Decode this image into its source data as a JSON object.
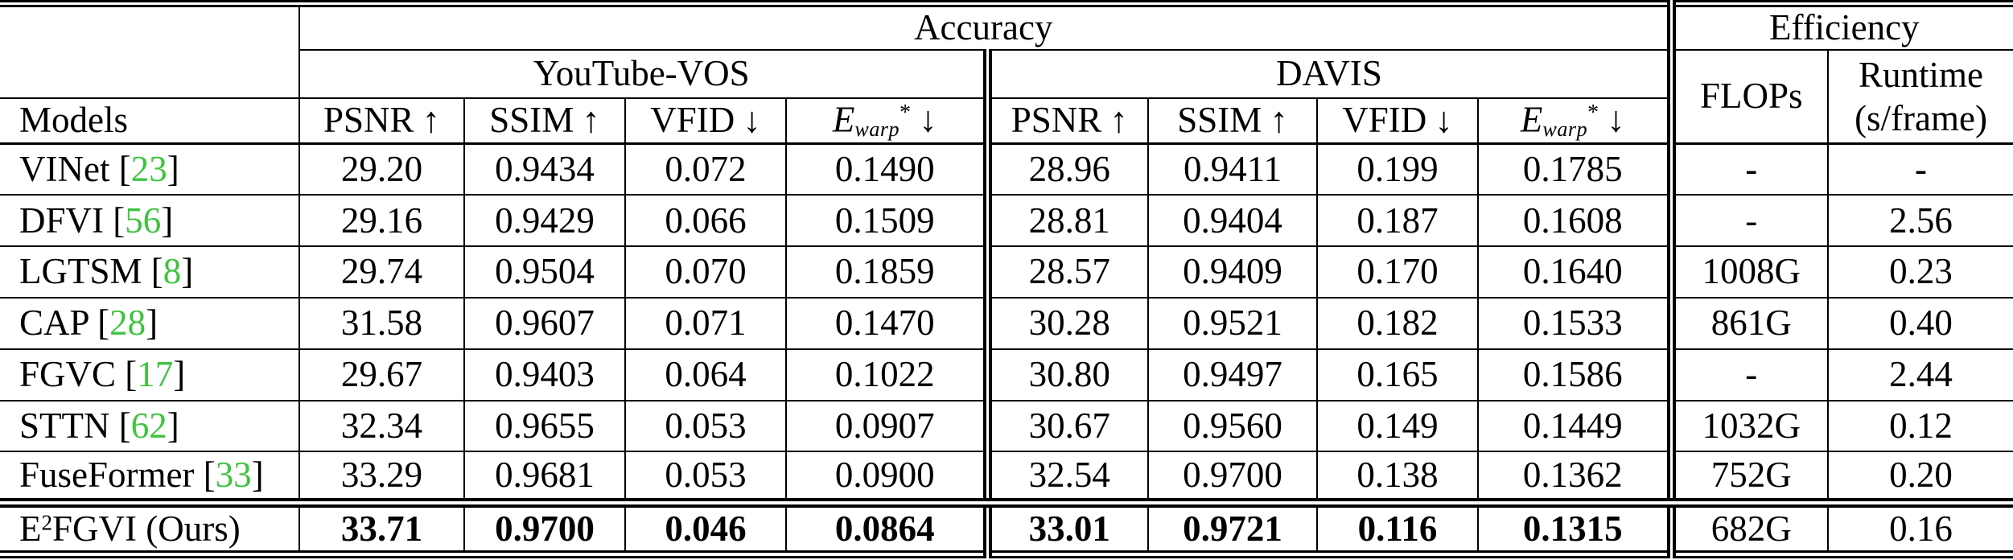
{
  "header": {
    "accuracy": "Accuracy",
    "efficiency": "Efficiency",
    "youtube": "YouTube-VOS",
    "davis": "DAVIS",
    "models": "Models",
    "flops": "FLOPs",
    "runtime_line1": "Runtime",
    "runtime_line2": "(s/frame)",
    "metrics": [
      {
        "label": "PSNR",
        "arrow": "↑"
      },
      {
        "label": "SSIM",
        "arrow": "↑"
      },
      {
        "label": "VFID",
        "arrow": "↓"
      },
      {
        "label": "E",
        "sub": "warp",
        "sup": "*",
        "arrow": "↓"
      }
    ]
  },
  "colors": {
    "citation_green": "#3ec43e"
  },
  "rows": [
    {
      "name_pre": "VINet",
      "name_sup": "",
      "name_post": "",
      "cite": "23",
      "yt": [
        "29.20",
        "0.9434",
        "0.072",
        "0.1490"
      ],
      "davis": [
        "28.96",
        "0.9411",
        "0.199",
        "0.1785"
      ],
      "flops": "-",
      "runtime": "-",
      "bold_accuracy": false,
      "separator_after": false
    },
    {
      "name_pre": "DFVI",
      "name_sup": "",
      "name_post": "",
      "cite": "56",
      "yt": [
        "29.16",
        "0.9429",
        "0.066",
        "0.1509"
      ],
      "davis": [
        "28.81",
        "0.9404",
        "0.187",
        "0.1608"
      ],
      "flops": "-",
      "runtime": "2.56",
      "bold_accuracy": false,
      "separator_after": false
    },
    {
      "name_pre": "LGTSM",
      "name_sup": "",
      "name_post": "",
      "cite": "8",
      "yt": [
        "29.74",
        "0.9504",
        "0.070",
        "0.1859"
      ],
      "davis": [
        "28.57",
        "0.9409",
        "0.170",
        "0.1640"
      ],
      "flops": "1008G",
      "runtime": "0.23",
      "bold_accuracy": false,
      "separator_after": false
    },
    {
      "name_pre": "CAP",
      "name_sup": "",
      "name_post": "",
      "cite": "28",
      "yt": [
        "31.58",
        "0.9607",
        "0.071",
        "0.1470"
      ],
      "davis": [
        "30.28",
        "0.9521",
        "0.182",
        "0.1533"
      ],
      "flops": "861G",
      "runtime": "0.40",
      "bold_accuracy": false,
      "separator_after": false
    },
    {
      "name_pre": "FGVC",
      "name_sup": "",
      "name_post": "",
      "cite": "17",
      "yt": [
        "29.67",
        "0.9403",
        "0.064",
        "0.1022"
      ],
      "davis": [
        "30.80",
        "0.9497",
        "0.165",
        "0.1586"
      ],
      "flops": "-",
      "runtime": "2.44",
      "bold_accuracy": false,
      "separator_after": false
    },
    {
      "name_pre": "STTN",
      "name_sup": "",
      "name_post": "",
      "cite": "62",
      "yt": [
        "32.34",
        "0.9655",
        "0.053",
        "0.0907"
      ],
      "davis": [
        "30.67",
        "0.9560",
        "0.149",
        "0.1449"
      ],
      "flops": "1032G",
      "runtime": "0.12",
      "bold_accuracy": false,
      "separator_after": false
    },
    {
      "name_pre": "FuseFormer",
      "name_sup": "",
      "name_post": "",
      "cite": "33",
      "yt": [
        "33.29",
        "0.9681",
        "0.053",
        "0.0900"
      ],
      "davis": [
        "32.54",
        "0.9700",
        "0.138",
        "0.1362"
      ],
      "flops": "752G",
      "runtime": "0.20",
      "bold_accuracy": false,
      "separator_after": true
    },
    {
      "name_pre": "E",
      "name_sup": "2",
      "name_post": "FGVI (Ours)",
      "cite": null,
      "yt": [
        "33.71",
        "0.9700",
        "0.046",
        "0.0864"
      ],
      "davis": [
        "33.01",
        "0.9721",
        "0.116",
        "0.1315"
      ],
      "flops": "682G",
      "runtime": "0.16",
      "bold_accuracy": true,
      "separator_after": false
    }
  ]
}
